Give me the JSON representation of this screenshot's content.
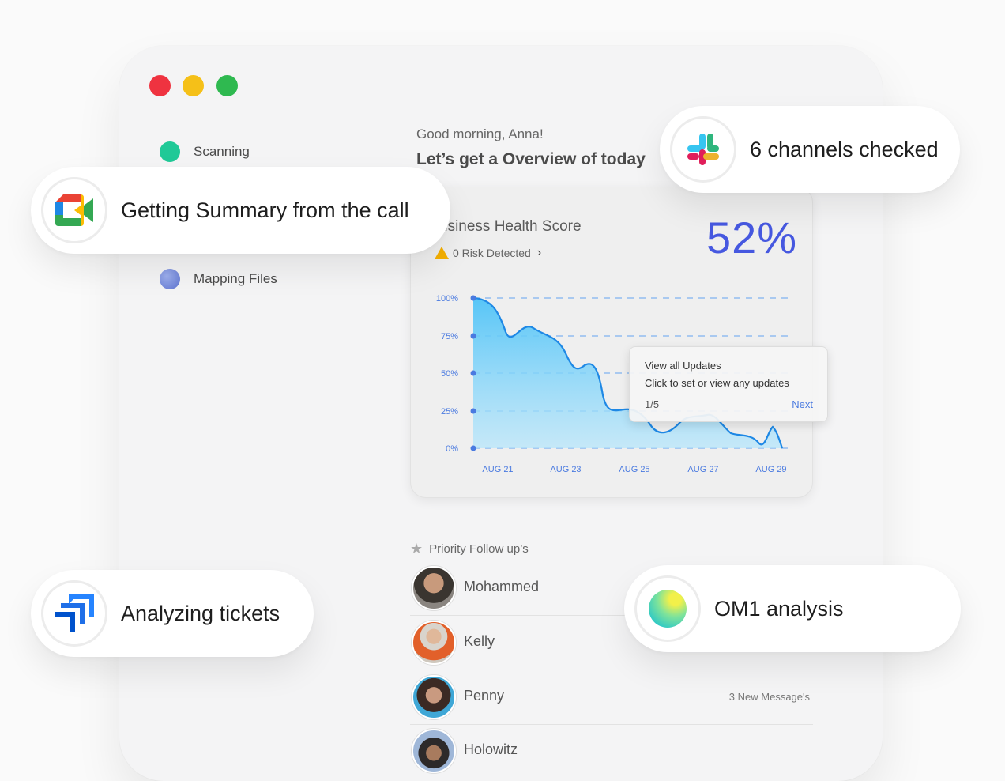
{
  "window": {
    "controls": [
      "close",
      "minimize",
      "maximize"
    ],
    "control_colors": {
      "close": "#ef3340",
      "minimize": "#f5c018",
      "maximize": "#2fb950"
    }
  },
  "steps": {
    "scanning": "Scanning",
    "mapping": "Mapping Files"
  },
  "greeting": "Good morning, Anna!",
  "overview": "Let’s get a Overview of today",
  "health": {
    "title": "Business Health Score",
    "title_visible": "usiness Health Score",
    "risk": "0 Risk Detected",
    "score": "52%"
  },
  "chart_data": {
    "type": "area",
    "x_ticks": [
      "AUG 21",
      "AUG 23",
      "AUG 25",
      "AUG 27",
      "AUG 29"
    ],
    "y_ticks": [
      "100%",
      "75%",
      "50%",
      "25%",
      "0%"
    ],
    "ylim": [
      0,
      100
    ],
    "grid": true,
    "series_color": "#1e88e5"
  },
  "tooltip": {
    "title": "View all Updates",
    "body": "Click to set or view any updates",
    "step": "1/5",
    "next": "Next"
  },
  "priority": {
    "title": "Priority Follow up’s",
    "rows": [
      {
        "name": "Mohammed",
        "message": ""
      },
      {
        "name": "Kelly",
        "message": ""
      },
      {
        "name": "Penny",
        "message": "3 New Message's"
      },
      {
        "name": "Holowitz",
        "message": ""
      }
    ]
  },
  "pills": {
    "call": "Getting Summary from the call",
    "channels": "6 channels checked",
    "tickets": "Analyzing tickets",
    "analysis": "OM1 analysis"
  },
  "icons": {
    "call": "google-meet-icon",
    "channels": "slack-icon",
    "tickets": "jira-icon",
    "analysis": "om1-gradient-icon"
  }
}
